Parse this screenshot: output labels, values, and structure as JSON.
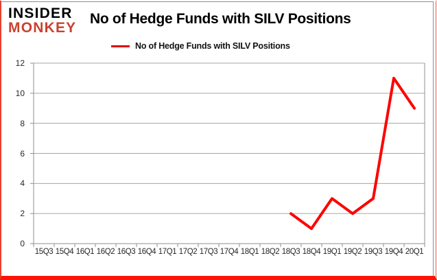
{
  "brand": {
    "line1": "INSIDER",
    "line2": "MONKEY",
    "line2_color": "#c8432f"
  },
  "header": {
    "title": "No of Hedge Funds with SILV Positions"
  },
  "legend": {
    "label": "No of Hedge Funds with SILV Positions",
    "line_color": "#e00000"
  },
  "colors": {
    "series_red": "#fe0000",
    "grid_gray": "#a6a6a6",
    "axis_gray": "#8f8f8f",
    "frame_red": "#fb1407"
  },
  "chart_data": {
    "type": "line",
    "title": "No of Hedge Funds with SILV Positions",
    "categories": [
      "15Q3",
      "15Q4",
      "16Q1",
      "16Q2",
      "16Q3",
      "16Q4",
      "17Q1",
      "17Q2",
      "17Q3",
      "17Q4",
      "18Q1",
      "18Q2",
      "18Q3",
      "18Q4",
      "19Q1",
      "19Q2",
      "19Q3",
      "19Q4",
      "20Q1"
    ],
    "series": [
      {
        "name": "No of Hedge Funds with SILV Positions",
        "values": [
          null,
          null,
          null,
          null,
          null,
          null,
          null,
          null,
          null,
          null,
          null,
          null,
          2,
          1,
          3,
          2,
          3,
          11,
          9
        ]
      }
    ],
    "ylim": [
      0,
      12
    ],
    "ytick_step": 2,
    "grid": true,
    "legend_position": "top"
  }
}
